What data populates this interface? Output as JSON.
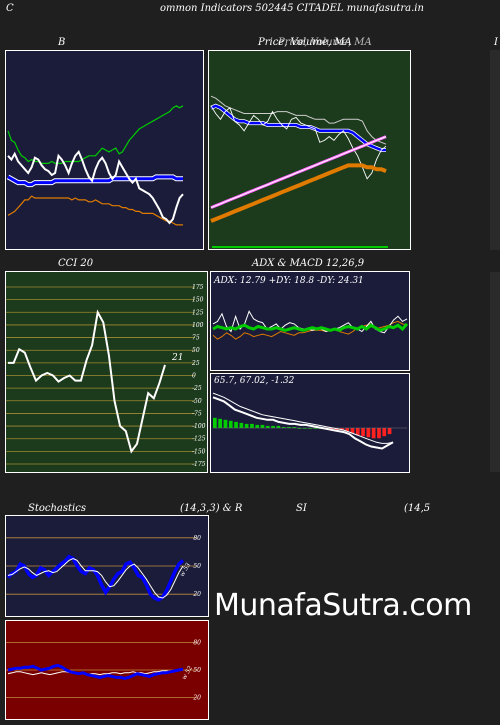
{
  "page_title": "ommon  Indicators 502445 CITADEL  munafasutra.in",
  "page_title_prefix": "C",
  "watermark": "MunafaSutra.com",
  "colors": {
    "navy": "#1a1c3a",
    "green_bg": "#1c3a1c",
    "red_bg": "#7a0000",
    "blue": "#0000ff",
    "white": "#ffffff",
    "green": "#00cc00",
    "orange": "#e07b00"
  },
  "panels": {
    "bollinger": {
      "title": "B"
    },
    "price": {
      "title": "Price,  Volume,  MA",
      "title_overlay": "Price, Volume, MA"
    },
    "right_edge": {
      "title": "I"
    },
    "cci": {
      "title": "CCI 20",
      "current_label": "21"
    },
    "adx": {
      "title": "ADX  & MACD 12,26,9",
      "readout": "ADX: 12.79  +DY: 18.8  -DY: 24.31"
    },
    "macd": {
      "readout": "65.7,  67.02,  -1.32"
    },
    "stoch": {
      "title_left": "Stochastics",
      "title_mid": "(14,3,3) & R",
      "current_label": "w 53"
    },
    "rsi": {
      "title_si": "SI",
      "title_right": "(14,5",
      "current_label": "w 52"
    }
  },
  "chart_data": [
    {
      "type": "line",
      "panel": "bollinger",
      "series": [
        {
          "role": "upper-band",
          "values": [
            60,
            55,
            54,
            50,
            47,
            46,
            44,
            45,
            44,
            44,
            43,
            43,
            43,
            44,
            43,
            43,
            43,
            44,
            44,
            44,
            44,
            44,
            45,
            46,
            47,
            47,
            47,
            49,
            51,
            50,
            49,
            50,
            51,
            48,
            49,
            52,
            55,
            57,
            59,
            61,
            62,
            63,
            64,
            65,
            66,
            67,
            68,
            69,
            70,
            72,
            73,
            72,
            73
          ]
        },
        {
          "role": "middle-band",
          "values": [
            36,
            35,
            34,
            33,
            33,
            33,
            32,
            32,
            33,
            33,
            33,
            33,
            33,
            33,
            34,
            34,
            34,
            34,
            34,
            34,
            34,
            34,
            34,
            34,
            34,
            34,
            34,
            34,
            34,
            34,
            34,
            35,
            35,
            35,
            35,
            35,
            35,
            35,
            35,
            35,
            35,
            35,
            35,
            35,
            36,
            36,
            36,
            36,
            36,
            36,
            35,
            35,
            35
          ]
        },
        {
          "role": "lower-band",
          "values": [
            16,
            17,
            18,
            20,
            22,
            24,
            24,
            26,
            25,
            25,
            25,
            25,
            25,
            25,
            25,
            25,
            25,
            25,
            25,
            24,
            25,
            24,
            24,
            24,
            23,
            23,
            24,
            23,
            22,
            22,
            22,
            21,
            21,
            21,
            20,
            20,
            19,
            19,
            18,
            18,
            17,
            17,
            17,
            17,
            16,
            15,
            14,
            13,
            13,
            12,
            11,
            11,
            11
          ]
        },
        {
          "role": "price",
          "values": [
            47,
            45,
            48,
            44,
            42,
            40,
            38,
            41,
            46,
            45,
            42,
            40,
            39,
            37,
            38,
            47,
            45,
            42,
            38,
            43,
            47,
            49,
            45,
            40,
            36,
            34,
            40,
            44,
            46,
            43,
            38,
            35,
            37,
            44,
            41,
            38,
            35,
            33,
            35,
            30,
            29,
            28,
            27,
            25,
            22,
            19,
            15,
            14,
            12,
            14,
            20,
            25,
            27
          ]
        }
      ]
    },
    {
      "type": "line",
      "panel": "price",
      "series": [
        {
          "role": "price",
          "values": [
            73,
            69,
            66,
            70,
            72,
            65,
            63,
            60,
            64,
            68,
            66,
            63,
            65,
            70,
            66,
            63,
            61,
            66,
            67,
            64,
            63,
            62,
            61,
            54,
            55,
            57,
            55,
            58,
            60,
            56,
            51,
            47,
            41,
            35,
            38,
            45,
            50,
            52
          ]
        },
        {
          "role": "upper-band",
          "values": [
            78,
            77,
            75,
            73,
            72,
            71,
            70,
            69,
            69,
            69,
            69,
            69,
            69,
            69,
            70,
            70,
            70,
            69,
            68,
            68,
            68,
            67,
            66,
            66,
            66,
            64,
            64,
            65,
            66,
            66,
            66,
            66,
            65,
            60,
            57,
            55,
            54,
            53
          ]
        },
        {
          "role": "middle-band",
          "values": [
            72,
            73,
            72,
            70,
            68,
            66,
            65,
            65,
            64,
            64,
            64,
            64,
            63,
            63,
            63,
            63,
            63,
            63,
            63,
            62,
            62,
            62,
            61,
            60,
            60,
            60,
            60,
            60,
            60,
            60,
            59,
            57,
            55,
            53,
            52,
            51,
            50,
            50
          ]
        },
        {
          "role": "ma-short",
          "values": [
            20,
            21,
            22,
            23,
            24,
            25,
            26,
            27,
            28,
            29,
            30,
            31,
            32,
            33,
            34,
            35,
            36,
            37,
            38,
            39,
            40,
            41,
            42,
            43,
            44,
            45,
            46,
            47,
            48,
            49,
            50,
            51,
            52,
            53,
            54,
            55,
            56,
            57
          ]
        },
        {
          "role": "ma-long",
          "values": [
            13,
            14,
            15,
            16,
            17,
            18,
            19,
            20,
            21,
            22,
            23,
            24,
            25,
            26,
            27,
            28,
            29,
            30,
            31,
            32,
            33,
            34,
            35,
            36,
            37,
            38,
            39,
            40,
            41,
            42,
            42,
            42,
            42,
            41,
            41,
            40,
            40,
            39
          ]
        }
      ]
    },
    {
      "type": "line",
      "panel": "cci",
      "ylim": [
        -175,
        175
      ],
      "yticks": [
        175,
        150,
        125,
        100,
        75,
        50,
        25,
        0,
        -25,
        -50,
        -75,
        -100,
        -125,
        -150,
        -175
      ],
      "values": [
        25,
        25,
        52,
        45,
        16,
        -10,
        0,
        5,
        0,
        -12,
        -5,
        0,
        -10,
        -10,
        30,
        60,
        125,
        105,
        40,
        -50,
        -100,
        -110,
        -150,
        -135,
        -85,
        -35,
        -45,
        -15,
        21
      ]
    },
    {
      "type": "line",
      "panel": "adx",
      "readout": {
        "ADX": 12.79,
        "+DY": 18.8,
        "-DY": 24.31
      },
      "series": [
        {
          "role": "adx",
          "values": [
            30,
            32,
            31,
            30,
            31,
            30,
            32,
            33,
            31,
            30,
            32,
            31,
            30,
            30,
            31,
            30,
            29,
            30,
            31,
            30,
            29,
            30,
            31,
            30,
            31,
            30,
            29,
            30,
            29,
            31,
            32,
            31,
            30,
            32,
            30,
            33,
            31,
            29,
            30,
            32,
            31,
            33,
            30,
            34
          ]
        },
        {
          "role": "plus-dy",
          "values": [
            34,
            36,
            42,
            32,
            28,
            40,
            30,
            34,
            44,
            38,
            36,
            35,
            30,
            32,
            34,
            30,
            33,
            35,
            34,
            31,
            30,
            30,
            29,
            30,
            30,
            28,
            29,
            30,
            31,
            33,
            35,
            31,
            30,
            28,
            32,
            36,
            30,
            28,
            27,
            32,
            37,
            40,
            36,
            38
          ]
        },
        {
          "role": "minus-dy",
          "values": [
            25,
            22,
            24,
            27,
            25,
            22,
            24,
            27,
            26,
            24,
            25,
            26,
            25,
            24,
            26,
            28,
            27,
            26,
            25,
            27,
            27,
            28,
            29,
            29,
            29,
            28,
            29,
            30,
            28,
            27,
            26,
            28,
            31,
            32,
            33,
            34,
            30,
            31,
            32,
            33,
            35,
            36,
            34,
            33
          ]
        }
      ]
    },
    {
      "type": "line",
      "panel": "macd",
      "readout": {
        "macd": 65.7,
        "signal": 67.02,
        "histogram": -1.32
      },
      "series": [
        {
          "role": "macd",
          "values": [
            30,
            28,
            26,
            22,
            18,
            16,
            14,
            12,
            10,
            9,
            8,
            8,
            6,
            5,
            4,
            4,
            3,
            3,
            2,
            1,
            0,
            -1,
            -2,
            -3,
            -4,
            -6,
            -10,
            -13,
            -16,
            -18,
            -19,
            -20,
            -17,
            -14
          ]
        },
        {
          "role": "signal",
          "values": [
            34,
            32,
            30,
            27,
            24,
            21,
            19,
            17,
            15,
            13,
            12,
            11,
            10,
            9,
            8,
            7,
            6,
            5,
            4,
            3,
            2,
            1,
            0,
            -1,
            -2,
            -4,
            -6,
            -8,
            -10,
            -12,
            -14,
            -15,
            -15,
            -14
          ]
        }
      ],
      "histogram": [
        10,
        9,
        8,
        7,
        6,
        5,
        4,
        4,
        3,
        3,
        2,
        2,
        2,
        1,
        1,
        1,
        0,
        0,
        0,
        0,
        0,
        -1,
        -1,
        -2,
        -2,
        -3,
        -5,
        -7,
        -8,
        -9,
        -10,
        -10,
        -8,
        -6
      ]
    },
    {
      "type": "line",
      "panel": "stoch",
      "yticks": [
        80,
        50,
        20
      ],
      "series": [
        {
          "role": "k",
          "values": [
            38,
            42,
            44,
            52,
            50,
            42,
            38,
            40,
            48,
            46,
            40,
            44,
            48,
            52,
            55,
            60,
            58,
            50,
            44,
            42,
            48,
            46,
            40,
            30,
            22,
            28,
            36,
            42,
            44,
            52,
            54,
            48,
            40,
            38,
            30,
            20,
            16,
            14,
            17,
            24,
            34,
            44,
            52,
            56
          ]
        },
        {
          "role": "d",
          "values": [
            40,
            41,
            44,
            47,
            49,
            47,
            43,
            40,
            42,
            44,
            45,
            43,
            44,
            48,
            52,
            56,
            58,
            56,
            50,
            45,
            45,
            45,
            44,
            40,
            33,
            28,
            29,
            34,
            40,
            46,
            50,
            52,
            48,
            42,
            36,
            29,
            22,
            17,
            16,
            19,
            25,
            34,
            43,
            50
          ]
        }
      ]
    },
    {
      "type": "line",
      "panel": "rsi",
      "yticks": [
        80,
        50,
        20
      ],
      "series": [
        {
          "role": "rsi",
          "values": [
            50,
            51,
            52,
            52,
            53,
            53,
            54,
            52,
            50,
            51,
            52,
            54,
            55,
            53,
            50,
            48,
            47,
            46,
            47,
            45,
            44,
            43,
            42,
            43,
            44,
            43,
            42,
            42,
            41,
            42,
            44,
            46,
            45,
            44,
            43,
            45,
            46,
            47,
            47,
            48,
            49,
            50,
            51
          ]
        },
        {
          "role": "williams",
          "values": [
            46,
            47,
            48,
            48,
            47,
            46,
            45,
            46,
            47,
            46,
            45,
            46,
            47,
            48,
            48,
            47,
            47,
            46,
            46,
            45,
            46,
            46,
            45,
            46,
            46,
            47,
            47,
            46,
            47,
            47,
            48,
            47,
            47,
            46,
            47,
            48,
            48,
            49,
            49,
            48,
            49,
            49,
            50
          ]
        }
      ]
    }
  ]
}
